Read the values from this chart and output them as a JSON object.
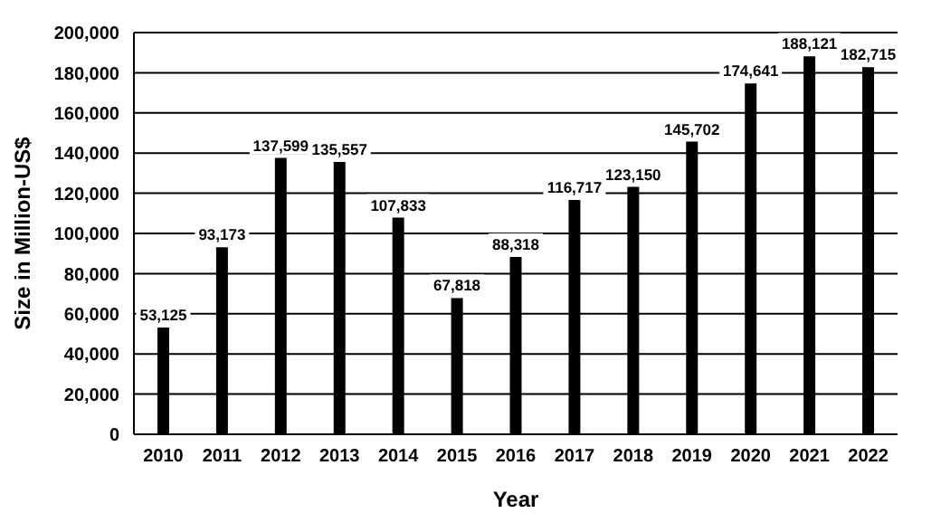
{
  "chart_data": {
    "type": "bar",
    "xlabel": "Year",
    "ylabel": "Size in Million-US$",
    "categories": [
      "2010",
      "2011",
      "2012",
      "2013",
      "2014",
      "2015",
      "2016",
      "2017",
      "2018",
      "2019",
      "2020",
      "2021",
      "2022"
    ],
    "values": [
      53125,
      93173,
      137599,
      135557,
      107833,
      67818,
      88318,
      116717,
      123150,
      145702,
      174641,
      188121,
      182715
    ],
    "value_labels": [
      "53,125",
      "93,173",
      "137,599",
      "135,557",
      "107,833",
      "67,818",
      "88,318",
      "116,717",
      "123,150",
      "145,702",
      "174,641",
      "188,121",
      "182,715"
    ],
    "color": "#000000",
    "ylim": [
      0,
      200000
    ],
    "yticks": [
      {
        "value": 0,
        "label": "0"
      },
      {
        "value": 20000,
        "label": "20,000"
      },
      {
        "value": 40000,
        "label": "40,000"
      },
      {
        "value": 60000,
        "label": "60,000"
      },
      {
        "value": 80000,
        "label": "80,000"
      },
      {
        "value": 100000,
        "label": "100,000"
      },
      {
        "value": 120000,
        "label": "120,000"
      },
      {
        "value": 140000,
        "label": "140,000"
      },
      {
        "value": 160000,
        "label": "160,000"
      },
      {
        "value": 180000,
        "label": "180,000"
      },
      {
        "value": 200000,
        "label": "200,000"
      }
    ],
    "grid": "y"
  }
}
